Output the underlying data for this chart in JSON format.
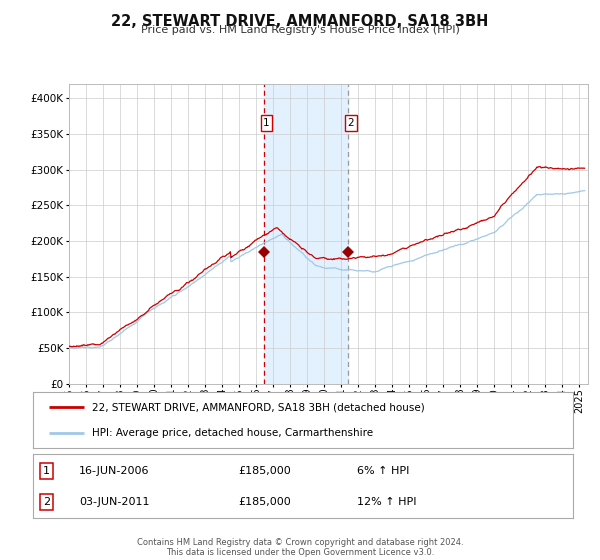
{
  "title": "22, STEWART DRIVE, AMMANFORD, SA18 3BH",
  "subtitle": "Price paid vs. HM Land Registry's House Price Index (HPI)",
  "legend_line1": "22, STEWART DRIVE, AMMANFORD, SA18 3BH (detached house)",
  "legend_line2": "HPI: Average price, detached house, Carmarthenshire",
  "transaction1": {
    "label": "1",
    "date": "16-JUN-2006",
    "price": "£185,000",
    "hpi": "6% ↑ HPI",
    "year": 2006.46
  },
  "transaction2": {
    "label": "2",
    "date": "03-JUN-2011",
    "price": "£185,000",
    "hpi": "12% ↑ HPI",
    "year": 2011.42
  },
  "hpi_color": "#a0c8e8",
  "price_color": "#cc0000",
  "marker_color": "#990000",
  "shade_color": "#ddeeff",
  "vline1_color": "#cc0000",
  "vline2_color": "#999999",
  "grid_color": "#cccccc",
  "bg_color": "#ffffff",
  "plot_bg_color": "#ffffff",
  "ylim": [
    0,
    420000
  ],
  "xlim_start": 1995.0,
  "xlim_end": 2025.5,
  "footer_text": "Contains HM Land Registry data © Crown copyright and database right 2024.\nThis data is licensed under the Open Government Licence v3.0.",
  "transaction1_marker_y": 185000,
  "transaction2_marker_y": 185000
}
